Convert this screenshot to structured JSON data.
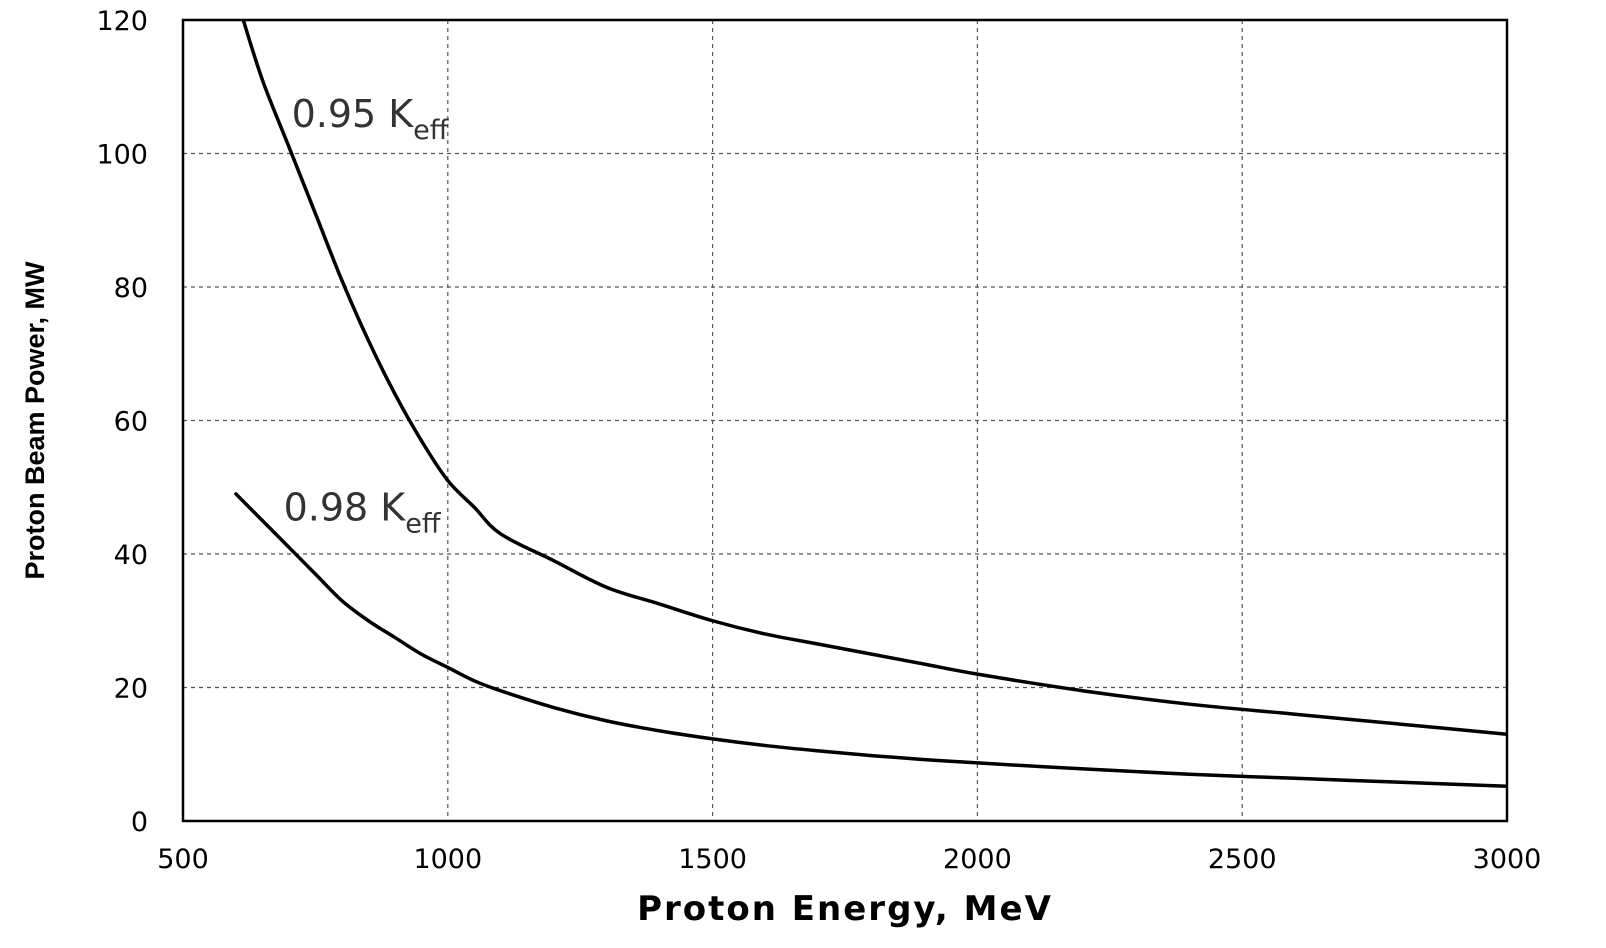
{
  "chart_data": {
    "type": "line",
    "title": "",
    "xlabel": "Proton Energy, MeV",
    "ylabel": "Proton Beam Power, MW",
    "xlim": [
      500,
      3000
    ],
    "ylim": [
      0,
      120
    ],
    "x_ticks": [
      500,
      1000,
      1500,
      2000,
      2500,
      3000
    ],
    "y_ticks": [
      0,
      20,
      40,
      60,
      80,
      100,
      120
    ],
    "grid": true,
    "legend": "none",
    "series": [
      {
        "label_main": "0.95 K",
        "label_sub": "eff",
        "label_at": [
          705,
          104
        ],
        "x": [
          610,
          650,
          700,
          750,
          800,
          850,
          900,
          950,
          1000,
          1050,
          1100,
          1200,
          1300,
          1400,
          1500,
          1600,
          1700,
          1800,
          1900,
          2000,
          2200,
          2400,
          2600,
          2800,
          3000
        ],
        "values": [
          121,
          111,
          101,
          91,
          81,
          72,
          64,
          57,
          51,
          47,
          43,
          39,
          35,
          32.5,
          30,
          28,
          26.5,
          25,
          23.5,
          22,
          19.5,
          17.5,
          16,
          14.5,
          13
        ]
      },
      {
        "label_main": "0.98 K",
        "label_sub": "eff",
        "label_at": [
          690,
          45
        ],
        "x": [
          600,
          650,
          700,
          750,
          800,
          850,
          900,
          950,
          1000,
          1050,
          1100,
          1200,
          1300,
          1400,
          1500,
          1600,
          1700,
          1800,
          1900,
          2000,
          2200,
          2400,
          2600,
          2800,
          3000
        ],
        "values": [
          49,
          45,
          41,
          37,
          33,
          30,
          27.5,
          25,
          23,
          21,
          19.5,
          17,
          15,
          13.5,
          12.3,
          11.3,
          10.5,
          9.8,
          9.2,
          8.7,
          7.8,
          7.0,
          6.4,
          5.8,
          5.2
        ]
      }
    ]
  }
}
